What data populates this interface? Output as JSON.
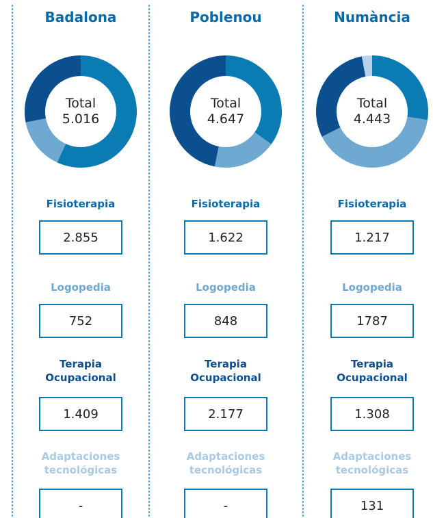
{
  "chart_data": [
    {
      "type": "pie",
      "title": "Badalona",
      "center_label": "Total",
      "total": "5.016",
      "categories": [
        "Fisioterapia",
        "Logopedia",
        "Terapia Ocupacional",
        "Adaptaciones tecnológicas"
      ],
      "values": [
        2855,
        752,
        1409,
        null
      ],
      "value_labels": [
        "2.855",
        "752",
        "1.409",
        "-"
      ],
      "colors": [
        "#0a7bb3",
        "#6fa8d0",
        "#0b4f8e",
        "#b7d3ea"
      ]
    },
    {
      "type": "pie",
      "title": "Poblenou",
      "center_label": "Total",
      "total": "4.647",
      "categories": [
        "Fisioterapia",
        "Logopedia",
        "Terapia Ocupacional",
        "Adaptaciones tecnológicas"
      ],
      "values": [
        1622,
        848,
        2177,
        null
      ],
      "value_labels": [
        "1.622",
        "848",
        "2.177",
        "-"
      ],
      "colors": [
        "#0a7bb3",
        "#6fa8d0",
        "#0b4f8e",
        "#b7d3ea"
      ]
    },
    {
      "type": "pie",
      "title": "Numància",
      "center_label": "Total",
      "total": "4.443",
      "categories": [
        "Fisioterapia",
        "Logopedia",
        "Terapia Ocupacional",
        "Adaptaciones tecnológicas"
      ],
      "values": [
        1217,
        1787,
        1308,
        131
      ],
      "value_labels": [
        "1.217",
        "1787",
        "1.308",
        "131"
      ],
      "colors": [
        "#0a7bb3",
        "#6fa8d0",
        "#0b4f8e",
        "#b7d3ea"
      ]
    }
  ]
}
